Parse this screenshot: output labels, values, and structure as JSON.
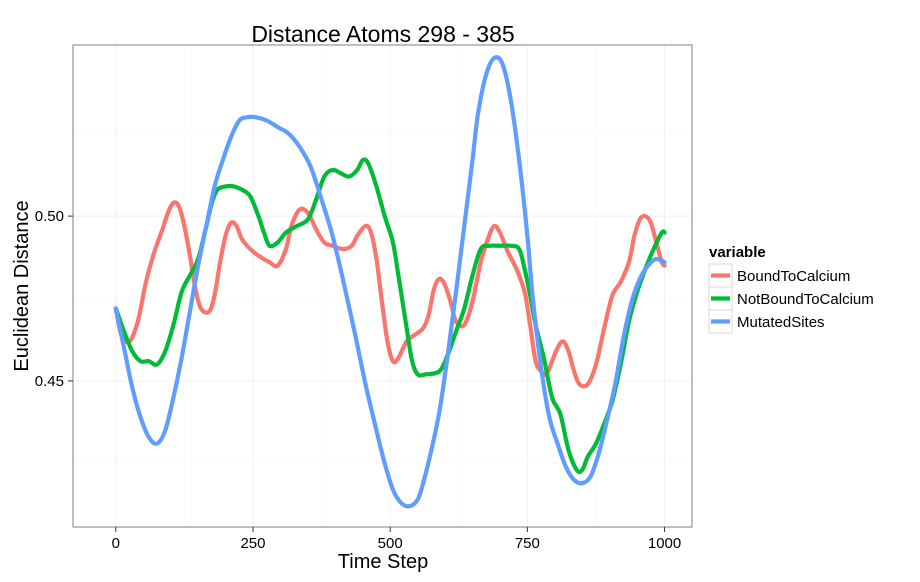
{
  "chart_data": {
    "type": "line",
    "title": "Distance Atoms 298 - 385",
    "xlabel": "Time Step",
    "ylabel": "Euclidean Distance",
    "xlim": [
      -78,
      1050
    ],
    "ylim": [
      0.4057,
      0.5519
    ],
    "x_ticks": [
      0,
      250,
      500,
      750,
      1000
    ],
    "x_tick_labels": [
      "0",
      "250",
      "500",
      "750",
      "1000"
    ],
    "y_ticks": [
      0.45,
      0.5
    ],
    "y_tick_labels": [
      "0.45",
      "0.50"
    ],
    "grid": true,
    "legend": {
      "title": "variable",
      "position": "right"
    },
    "series": [
      {
        "name": "BoundToCalcium",
        "color": "#F8766D",
        "points": [
          [
            0,
            0.472
          ],
          [
            10,
            0.464
          ],
          [
            25,
            0.462
          ],
          [
            40,
            0.468
          ],
          [
            55,
            0.48
          ],
          [
            70,
            0.489
          ],
          [
            85,
            0.496
          ],
          [
            95,
            0.501
          ],
          [
            105,
            0.504
          ],
          [
            115,
            0.503
          ],
          [
            125,
            0.497
          ],
          [
            135,
            0.488
          ],
          [
            145,
            0.478
          ],
          [
            155,
            0.472
          ],
          [
            170,
            0.471
          ],
          [
            180,
            0.476
          ],
          [
            190,
            0.486
          ],
          [
            200,
            0.494
          ],
          [
            210,
            0.498
          ],
          [
            220,
            0.497
          ],
          [
            230,
            0.493
          ],
          [
            245,
            0.49
          ],
          [
            260,
            0.488
          ],
          [
            280,
            0.486
          ],
          [
            295,
            0.485
          ],
          [
            310,
            0.49
          ],
          [
            320,
            0.497
          ],
          [
            335,
            0.502
          ],
          [
            350,
            0.501
          ],
          [
            365,
            0.496
          ],
          [
            380,
            0.492
          ],
          [
            395,
            0.491
          ],
          [
            415,
            0.49
          ],
          [
            430,
            0.491
          ],
          [
            440,
            0.494
          ],
          [
            455,
            0.497
          ],
          [
            465,
            0.495
          ],
          [
            475,
            0.487
          ],
          [
            485,
            0.474
          ],
          [
            495,
            0.462
          ],
          [
            505,
            0.456
          ],
          [
            515,
            0.457
          ],
          [
            530,
            0.462
          ],
          [
            545,
            0.464
          ],
          [
            560,
            0.466
          ],
          [
            570,
            0.47
          ],
          [
            580,
            0.478
          ],
          [
            590,
            0.481
          ],
          [
            600,
            0.479
          ],
          [
            610,
            0.474
          ],
          [
            620,
            0.468
          ],
          [
            635,
            0.467
          ],
          [
            650,
            0.474
          ],
          [
            665,
            0.486
          ],
          [
            680,
            0.494
          ],
          [
            690,
            0.497
          ],
          [
            700,
            0.495
          ],
          [
            715,
            0.489
          ],
          [
            730,
            0.484
          ],
          [
            745,
            0.477
          ],
          [
            755,
            0.467
          ],
          [
            765,
            0.456
          ],
          [
            775,
            0.453
          ],
          [
            785,
            0.452
          ],
          [
            795,
            0.456
          ],
          [
            805,
            0.46
          ],
          [
            815,
            0.462
          ],
          [
            825,
            0.459
          ],
          [
            835,
            0.453
          ],
          [
            845,
            0.449
          ],
          [
            860,
            0.449
          ],
          [
            875,
            0.455
          ],
          [
            890,
            0.466
          ],
          [
            905,
            0.476
          ],
          [
            920,
            0.48
          ],
          [
            935,
            0.486
          ],
          [
            945,
            0.494
          ],
          [
            955,
            0.499
          ],
          [
            965,
            0.5
          ],
          [
            975,
            0.498
          ],
          [
            985,
            0.492
          ],
          [
            995,
            0.486
          ],
          [
            1000,
            0.485
          ]
        ]
      },
      {
        "name": "NotBoundToCalcium",
        "color": "#00BA38",
        "points": [
          [
            0,
            0.472
          ],
          [
            15,
            0.465
          ],
          [
            30,
            0.459
          ],
          [
            45,
            0.456
          ],
          [
            60,
            0.456
          ],
          [
            75,
            0.455
          ],
          [
            90,
            0.459
          ],
          [
            105,
            0.467
          ],
          [
            120,
            0.477
          ],
          [
            135,
            0.482
          ],
          [
            150,
            0.487
          ],
          [
            165,
            0.497
          ],
          [
            175,
            0.504
          ],
          [
            185,
            0.508
          ],
          [
            200,
            0.509
          ],
          [
            215,
            0.509
          ],
          [
            230,
            0.508
          ],
          [
            245,
            0.506
          ],
          [
            260,
            0.5
          ],
          [
            270,
            0.495
          ],
          [
            280,
            0.491
          ],
          [
            295,
            0.492
          ],
          [
            310,
            0.495
          ],
          [
            330,
            0.497
          ],
          [
            350,
            0.499
          ],
          [
            365,
            0.505
          ],
          [
            380,
            0.512
          ],
          [
            395,
            0.514
          ],
          [
            410,
            0.513
          ],
          [
            425,
            0.512
          ],
          [
            440,
            0.514
          ],
          [
            450,
            0.517
          ],
          [
            460,
            0.516
          ],
          [
            475,
            0.509
          ],
          [
            490,
            0.5
          ],
          [
            505,
            0.492
          ],
          [
            515,
            0.482
          ],
          [
            530,
            0.466
          ],
          [
            540,
            0.456
          ],
          [
            550,
            0.452
          ],
          [
            565,
            0.452
          ],
          [
            590,
            0.453
          ],
          [
            605,
            0.458
          ],
          [
            620,
            0.465
          ],
          [
            635,
            0.472
          ],
          [
            650,
            0.482
          ],
          [
            665,
            0.49
          ],
          [
            680,
            0.491
          ],
          [
            700,
            0.491
          ],
          [
            720,
            0.491
          ],
          [
            735,
            0.49
          ],
          [
            745,
            0.484
          ],
          [
            755,
            0.476
          ],
          [
            765,
            0.467
          ],
          [
            780,
            0.457
          ],
          [
            795,
            0.445
          ],
          [
            810,
            0.44
          ],
          [
            825,
            0.429
          ],
          [
            840,
            0.423
          ],
          [
            850,
            0.423
          ],
          [
            860,
            0.427
          ],
          [
            875,
            0.431
          ],
          [
            890,
            0.437
          ],
          [
            905,
            0.444
          ],
          [
            920,
            0.455
          ],
          [
            935,
            0.468
          ],
          [
            950,
            0.477
          ],
          [
            965,
            0.484
          ],
          [
            980,
            0.49
          ],
          [
            995,
            0.495
          ],
          [
            1000,
            0.495
          ]
        ]
      },
      {
        "name": "MutatedSites",
        "color": "#619CFF",
        "points": [
          [
            0,
            0.472
          ],
          [
            15,
            0.46
          ],
          [
            30,
            0.448
          ],
          [
            45,
            0.439
          ],
          [
            60,
            0.433
          ],
          [
            75,
            0.431
          ],
          [
            90,
            0.435
          ],
          [
            105,
            0.445
          ],
          [
            120,
            0.457
          ],
          [
            135,
            0.471
          ],
          [
            150,
            0.485
          ],
          [
            165,
            0.497
          ],
          [
            180,
            0.509
          ],
          [
            195,
            0.517
          ],
          [
            210,
            0.524
          ],
          [
            225,
            0.529
          ],
          [
            240,
            0.53
          ],
          [
            255,
            0.53
          ],
          [
            275,
            0.529
          ],
          [
            295,
            0.527
          ],
          [
            315,
            0.525
          ],
          [
            335,
            0.521
          ],
          [
            355,
            0.515
          ],
          [
            375,
            0.505
          ],
          [
            395,
            0.494
          ],
          [
            415,
            0.48
          ],
          [
            435,
            0.465
          ],
          [
            455,
            0.449
          ],
          [
            475,
            0.435
          ],
          [
            490,
            0.425
          ],
          [
            505,
            0.417
          ],
          [
            520,
            0.413
          ],
          [
            535,
            0.412
          ],
          [
            550,
            0.414
          ],
          [
            560,
            0.419
          ],
          [
            575,
            0.429
          ],
          [
            590,
            0.441
          ],
          [
            605,
            0.458
          ],
          [
            620,
            0.477
          ],
          [
            635,
            0.497
          ],
          [
            650,
            0.517
          ],
          [
            660,
            0.531
          ],
          [
            675,
            0.543
          ],
          [
            690,
            0.548
          ],
          [
            705,
            0.546
          ],
          [
            720,
            0.535
          ],
          [
            735,
            0.517
          ],
          [
            750,
            0.494
          ],
          [
            760,
            0.475
          ],
          [
            775,
            0.454
          ],
          [
            790,
            0.439
          ],
          [
            805,
            0.431
          ],
          [
            820,
            0.424
          ],
          [
            835,
            0.42
          ],
          [
            850,
            0.419
          ],
          [
            865,
            0.421
          ],
          [
            880,
            0.428
          ],
          [
            895,
            0.438
          ],
          [
            910,
            0.449
          ],
          [
            925,
            0.463
          ],
          [
            940,
            0.474
          ],
          [
            955,
            0.481
          ],
          [
            970,
            0.485
          ],
          [
            985,
            0.487
          ],
          [
            1000,
            0.486
          ]
        ]
      }
    ]
  }
}
